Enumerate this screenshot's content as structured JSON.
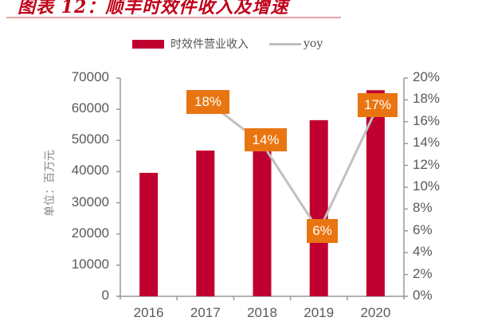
{
  "title": "图表 12：顺丰时效件收入及增速",
  "legend": {
    "bar_label": "时效件营业收入",
    "line_label": "yoy"
  },
  "colors": {
    "bar": "#c00030",
    "line": "#c0c0c0",
    "data_label_bg": "#e97510",
    "title": "#c00018",
    "axis": "#999999"
  },
  "y_axis_label": "单位：百万元",
  "left_ticks": [
    "70000",
    "60000",
    "50000",
    "40000",
    "30000",
    "20000",
    "10000",
    "0"
  ],
  "right_ticks": [
    "20%",
    "18%",
    "16%",
    "14%",
    "12%",
    "10%",
    "8%",
    "6%",
    "4%",
    "2%",
    "0%"
  ],
  "x_ticks": [
    "2016",
    "2017",
    "2018",
    "2019",
    "2020"
  ],
  "data_labels": [
    "18%",
    "14%",
    "6%",
    "17%"
  ],
  "chart_data": {
    "type": "bar",
    "title": "图表 12：顺丰时效件收入及增速",
    "categories": [
      "2016",
      "2017",
      "2018",
      "2019",
      "2020"
    ],
    "series": [
      {
        "name": "时效件营业收入",
        "type": "bar",
        "axis": "left",
        "values": [
          39600,
          46750,
          53300,
          56500,
          66100
        ]
      },
      {
        "name": "yoy",
        "type": "line",
        "axis": "right",
        "values": [
          null,
          18,
          14,
          6,
          17
        ],
        "unit": "%",
        "data_labels": [
          "18%",
          "14%",
          "6%",
          "17%"
        ]
      }
    ],
    "xlabel": "",
    "ylabel": "单位：百万元",
    "ylim": [
      0,
      70000
    ],
    "y2lim": [
      0,
      20
    ],
    "y_ticks": [
      0,
      10000,
      20000,
      30000,
      40000,
      50000,
      60000,
      70000
    ],
    "y2_ticks": [
      "0%",
      "2%",
      "4%",
      "6%",
      "8%",
      "10%",
      "12%",
      "14%",
      "16%",
      "18%",
      "20%"
    ],
    "grid": false,
    "legend_position": "top"
  }
}
